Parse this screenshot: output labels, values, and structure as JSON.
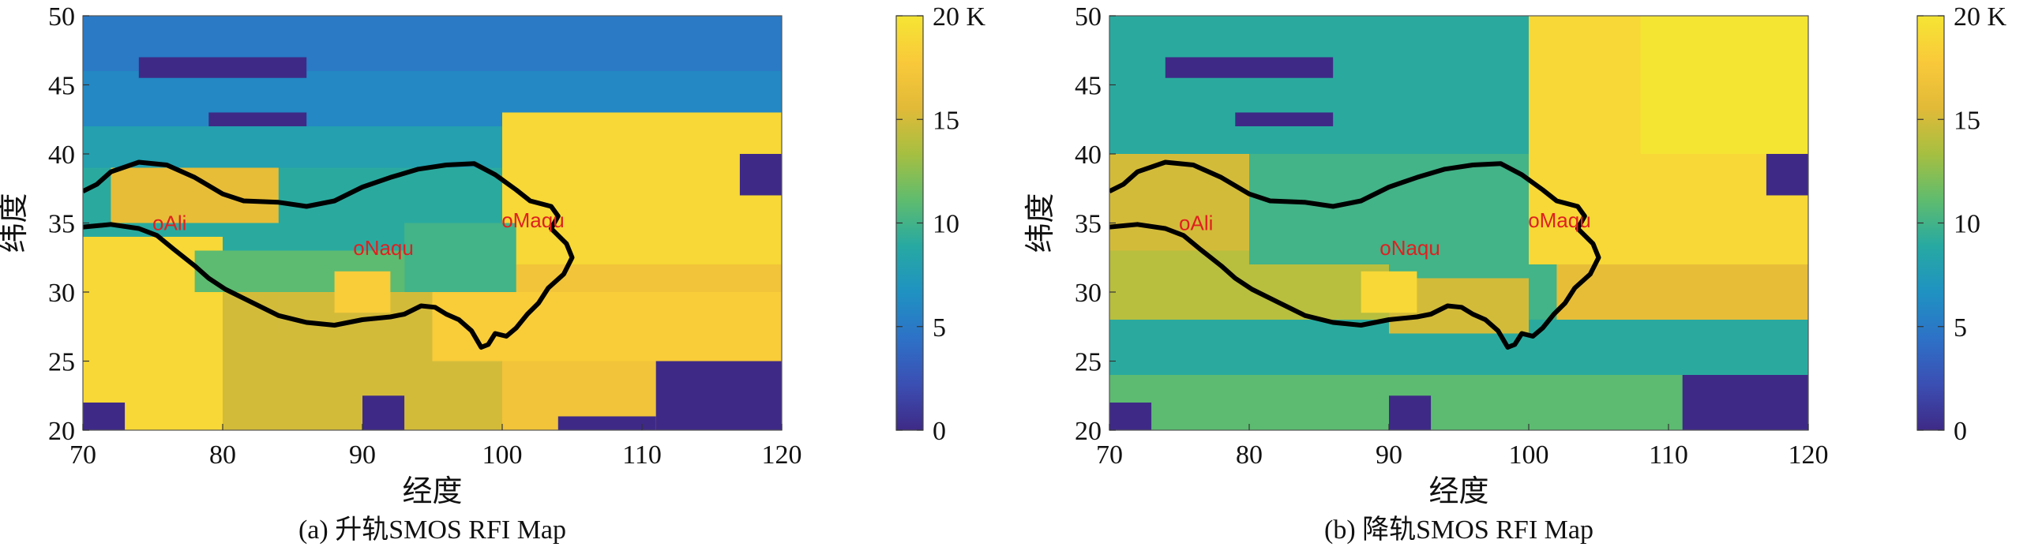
{
  "colormap": {
    "name": "parula",
    "stops": [
      "#3e2a86",
      "#3b4fb3",
      "#2d72c7",
      "#1f92c2",
      "#27a9a2",
      "#5fbc6e",
      "#a6bf41",
      "#e2ba38",
      "#f9c93a",
      "#f5e533"
    ]
  },
  "chart_data": [
    {
      "type": "heatmap",
      "caption": "(a) 升轨SMOS RFI Map",
      "xlabel": "经度",
      "ylabel": "纬度",
      "xlim": [
        70,
        120
      ],
      "ylim": [
        20,
        50
      ],
      "x_ticks": [
        "70",
        "80",
        "90",
        "100",
        "110",
        "120"
      ],
      "y_ticks": [
        "20",
        "25",
        "30",
        "35",
        "40",
        "45",
        "50"
      ],
      "colorbar": {
        "range": [
          0,
          20
        ],
        "unit": "K",
        "ticks": [
          "0",
          "5",
          "10",
          "15",
          "20 K"
        ]
      },
      "cities": [
        {
          "name": "oAli",
          "lon": 76.2,
          "lat": 34.5
        },
        {
          "name": "oNaqu",
          "lon": 91.5,
          "lat": 32.7
        },
        {
          "name": "oMaqu",
          "lon": 102.2,
          "lat": 34.7
        }
      ],
      "regions": [
        {
          "lon": [
            70,
            121
          ],
          "lat": [
            20,
            50
          ],
          "value": 9
        },
        {
          "lon": [
            70,
            121
          ],
          "lat": [
            40,
            50
          ],
          "value": 6
        },
        {
          "lon": [
            70,
            121
          ],
          "lat": [
            46,
            50
          ],
          "value": 5
        },
        {
          "lon": [
            70,
            121
          ],
          "lat": [
            39,
            42
          ],
          "value": 8
        },
        {
          "lon": [
            70,
            121
          ],
          "lat": [
            20,
            34
          ],
          "value": 15
        },
        {
          "lon": [
            70,
            80
          ],
          "lat": [
            20,
            34
          ],
          "value": 19
        },
        {
          "lon": [
            100,
            121
          ],
          "lat": [
            20,
            32
          ],
          "value": 17
        },
        {
          "lon": [
            100,
            121
          ],
          "lat": [
            32,
            43
          ],
          "value": 19
        },
        {
          "lon": [
            80,
            100
          ],
          "lat": [
            33,
            38
          ],
          "value": 9
        },
        {
          "lon": [
            84,
            100
          ],
          "lat": [
            27,
            30
          ],
          "value": 15
        },
        {
          "lon": [
            95,
            121
          ],
          "lat": [
            25,
            30
          ],
          "value": 18
        },
        {
          "lon": [
            72,
            84
          ],
          "lat": [
            35,
            39
          ],
          "value": 16
        },
        {
          "lon": [
            93,
            101
          ],
          "lat": [
            30,
            35
          ],
          "value": 10
        },
        {
          "lon": [
            78,
            93
          ],
          "lat": [
            30,
            33
          ],
          "value": 11
        },
        {
          "lon": [
            88,
            92
          ],
          "lat": [
            28.5,
            31.5
          ],
          "value": 18
        },
        {
          "lon": [
            117,
            121
          ],
          "lat": [
            37,
            40
          ],
          "value": 0
        },
        {
          "lon": [
            111,
            121
          ],
          "lat": [
            20,
            25
          ],
          "value": 0
        },
        {
          "lon": [
            104,
            111
          ],
          "lat": [
            20,
            21
          ],
          "value": 0
        },
        {
          "lon": [
            70,
            73
          ],
          "lat": [
            20,
            22
          ],
          "value": 0
        },
        {
          "lon": [
            90,
            93
          ],
          "lat": [
            20,
            22.5
          ],
          "value": 0
        },
        {
          "lon": [
            74,
            86
          ],
          "lat": [
            45.5,
            47
          ],
          "value": 0
        },
        {
          "lon": [
            79,
            86
          ],
          "lat": [
            42,
            43
          ],
          "value": 0
        }
      ]
    },
    {
      "type": "heatmap",
      "caption": "(b) 降轨SMOS RFI Map",
      "xlabel": "经度",
      "ylabel": "纬度",
      "xlim": [
        70,
        120
      ],
      "ylim": [
        20,
        50
      ],
      "x_ticks": [
        "70",
        "80",
        "90",
        "100",
        "110",
        "120"
      ],
      "y_ticks": [
        "20",
        "25",
        "30",
        "35",
        "40",
        "45",
        "50"
      ],
      "colorbar": {
        "range": [
          0,
          20
        ],
        "unit": "K",
        "ticks": [
          "0",
          "5",
          "10",
          "15",
          "20 K"
        ]
      },
      "cities": [
        {
          "name": "oAli",
          "lon": 76.2,
          "lat": 34.5
        },
        {
          "name": "oNaqu",
          "lon": 91.5,
          "lat": 32.7
        },
        {
          "name": "oMaqu",
          "lon": 102.2,
          "lat": 34.7
        }
      ],
      "regions": [
        {
          "lon": [
            70,
            121
          ],
          "lat": [
            20,
            50
          ],
          "value": 10
        },
        {
          "lon": [
            70,
            121
          ],
          "lat": [
            40,
            50
          ],
          "value": 9
        },
        {
          "lon": [
            70,
            121
          ],
          "lat": [
            20,
            28
          ],
          "value": 9
        },
        {
          "lon": [
            70,
            90
          ],
          "lat": [
            28,
            34
          ],
          "value": 14
        },
        {
          "lon": [
            70,
            80
          ],
          "lat": [
            33,
            40
          ],
          "value": 15
        },
        {
          "lon": [
            100,
            121
          ],
          "lat": [
            32,
            50
          ],
          "value": 19
        },
        {
          "lon": [
            102,
            121
          ],
          "lat": [
            28,
            32
          ],
          "value": 16
        },
        {
          "lon": [
            108,
            121
          ],
          "lat": [
            40,
            50
          ],
          "value": 20
        },
        {
          "lon": [
            90,
            100
          ],
          "lat": [
            27,
            31
          ],
          "value": 15
        },
        {
          "lon": [
            88,
            92
          ],
          "lat": [
            28.5,
            31.5
          ],
          "value": 19
        },
        {
          "lon": [
            80,
            100
          ],
          "lat": [
            32,
            38
          ],
          "value": 10
        },
        {
          "lon": [
            70,
            121
          ],
          "lat": [
            20,
            24
          ],
          "value": 11
        },
        {
          "lon": [
            111,
            121
          ],
          "lat": [
            20,
            24
          ],
          "value": 0
        },
        {
          "lon": [
            70,
            73
          ],
          "lat": [
            20,
            22
          ],
          "value": 0
        },
        {
          "lon": [
            90,
            93
          ],
          "lat": [
            20,
            22.5
          ],
          "value": 0
        },
        {
          "lon": [
            117,
            121
          ],
          "lat": [
            37,
            40
          ],
          "value": 0
        },
        {
          "lon": [
            74,
            86
          ],
          "lat": [
            45.5,
            47
          ],
          "value": 0
        },
        {
          "lon": [
            79,
            86
          ],
          "lat": [
            42,
            43
          ],
          "value": 0
        }
      ]
    }
  ]
}
